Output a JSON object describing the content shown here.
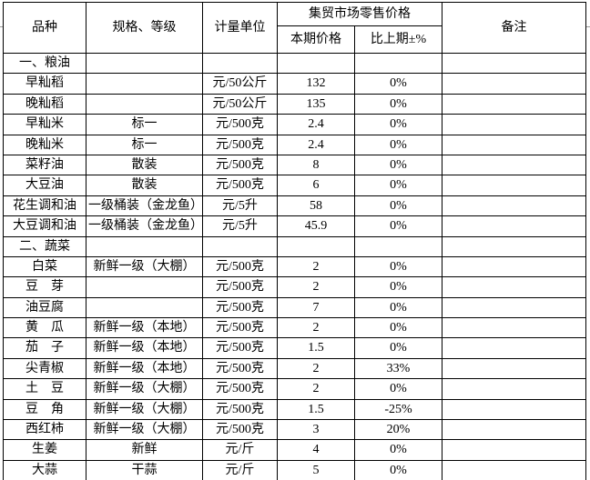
{
  "colors": {
    "border": "#000000",
    "text": "#000000",
    "background": "#ffffff",
    "margin_gridline": "#9b9b9b"
  },
  "headers": {
    "variety": "品种",
    "spec_grade": "规格、等级",
    "unit": "计量单位",
    "retail_group": "集贸市场零售价格",
    "current_price": "本期价格",
    "vs_last": "比上期±%",
    "remarks": "备注"
  },
  "rows": [
    {
      "name": "一、粮油",
      "spec": "",
      "unit": "",
      "price": "",
      "change": "",
      "remark": "",
      "section": true
    },
    {
      "name": "早籼稻",
      "spec": "",
      "unit": "元/50公斤",
      "price": "132",
      "change": "0%",
      "remark": ""
    },
    {
      "name": "晚籼稻",
      "spec": "",
      "unit": "元/50公斤",
      "price": "135",
      "change": "0%",
      "remark": ""
    },
    {
      "name": "早籼米",
      "spec": "标一",
      "unit": "元/500克",
      "price": "2.4",
      "change": "0%",
      "remark": ""
    },
    {
      "name": "晚籼米",
      "spec": "标一",
      "unit": "元/500克",
      "price": "2.4",
      "change": "0%",
      "remark": ""
    },
    {
      "name": "菜籽油",
      "spec": "散装",
      "unit": "元/500克",
      "price": "8",
      "change": "0%",
      "remark": ""
    },
    {
      "name": "大豆油",
      "spec": "散装",
      "unit": "元/500克",
      "price": "6",
      "change": "0%",
      "remark": ""
    },
    {
      "name": "花生调和油",
      "spec": "一级桶装（金龙鱼）",
      "unit": "元/5升",
      "price": "58",
      "change": "0%",
      "remark": ""
    },
    {
      "name": "大豆调和油",
      "spec": "一级桶装（金龙鱼）",
      "unit": "元/5升",
      "price": "45.9",
      "change": "0%",
      "remark": ""
    },
    {
      "name": "二、蔬菜",
      "spec": "",
      "unit": "",
      "price": "",
      "change": "",
      "remark": "",
      "section": true
    },
    {
      "name": "白菜",
      "spec": "新鲜一级（大棚）",
      "unit": "元/500克",
      "price": "2",
      "change": "0%",
      "remark": ""
    },
    {
      "name": "豆　芽",
      "spec": "",
      "unit": "元/500克",
      "price": "2",
      "change": "0%",
      "remark": ""
    },
    {
      "name": "油豆腐",
      "spec": "",
      "unit": "元/500克",
      "price": "7",
      "change": "0%",
      "remark": ""
    },
    {
      "name": "黄　瓜",
      "spec": "新鲜一级（本地）",
      "unit": "元/500克",
      "price": "2",
      "change": "0%",
      "remark": ""
    },
    {
      "name": "茄　子",
      "spec": "新鲜一级（本地）",
      "unit": "元/500克",
      "price": "1.5",
      "change": "0%",
      "remark": ""
    },
    {
      "name": "尖青椒",
      "spec": "新鲜一级（本地）",
      "unit": "元/500克",
      "price": "2",
      "change": "33%",
      "remark": ""
    },
    {
      "name": "土　豆",
      "spec": "新鲜一级（大棚）",
      "unit": "元/500克",
      "price": "2",
      "change": "0%",
      "remark": ""
    },
    {
      "name": "豆　角",
      "spec": "新鲜一级（大棚）",
      "unit": "元/500克",
      "price": "1.5",
      "change": "-25%",
      "remark": ""
    },
    {
      "name": "西红柿",
      "spec": "新鲜一级（大棚）",
      "unit": "元/500克",
      "price": "3",
      "change": "20%",
      "remark": ""
    },
    {
      "name": "生姜",
      "spec": "新鲜",
      "unit": "元/斤",
      "price": "4",
      "change": "0%",
      "remark": ""
    },
    {
      "name": "大蒜",
      "spec": "干蒜",
      "unit": "元/斤",
      "price": "5",
      "change": "0%",
      "remark": ""
    }
  ]
}
